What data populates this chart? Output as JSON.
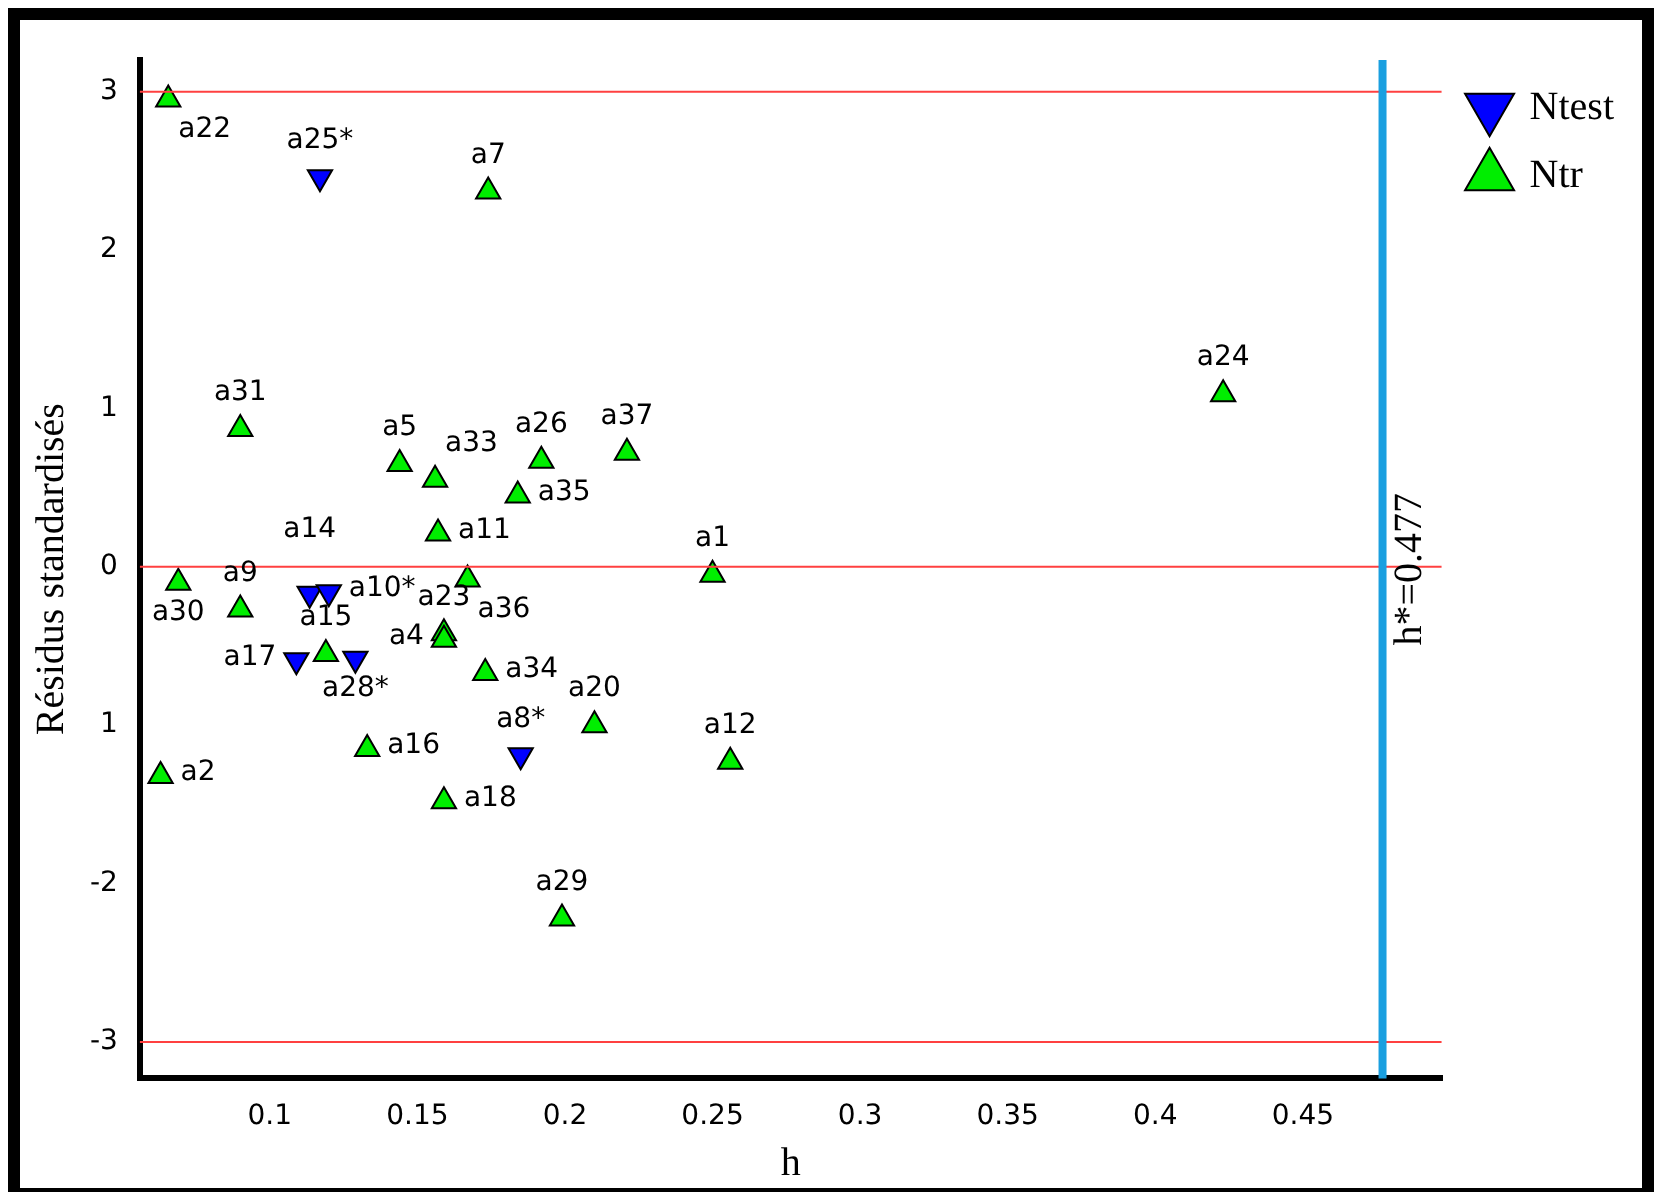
{
  "chart_data": {
    "type": "scatter",
    "xlabel": "h",
    "ylabel": "Résidus standardisés",
    "xlim": [
      0.056,
      0.497
    ],
    "xticks": [
      0.1,
      0.15,
      0.2,
      0.25,
      0.3,
      0.35,
      0.4,
      0.45
    ],
    "ylim": [
      -3.23,
      3.2
    ],
    "yticks": [
      -3,
      -2,
      {
        "value": -1,
        "label": "1"
      },
      0,
      1,
      2,
      3
    ],
    "grid": false,
    "legend": "top right",
    "series": [
      {
        "name": "Ntest",
        "color": "#0000ff",
        "marker": "triangle-down",
        "x": [
          0.117,
          0.1135,
          0.12,
          0.109,
          0.129,
          0.185
        ],
        "values": [
          2.46,
          -0.17,
          -0.16,
          -0.59,
          -0.58,
          -1.19
        ]
      },
      {
        "name": "Ntr",
        "color": "#00ee00",
        "marker": "triangle",
        "x": [
          0.0656,
          0.174,
          0.09,
          0.144,
          0.156,
          0.192,
          0.184,
          0.221,
          0.157,
          0.167,
          0.25,
          0.069,
          0.09,
          0.119,
          0.159,
          0.159,
          0.173,
          0.21,
          0.133,
          0.256,
          0.063,
          0.159,
          0.199,
          0.423
        ],
        "values": [
          2.95,
          2.37,
          0.87,
          0.65,
          0.55,
          0.67,
          0.45,
          0.72,
          0.21,
          -0.08,
          -0.05,
          -0.1,
          -0.27,
          -0.55,
          -0.42,
          -0.46,
          -0.67,
          -1.0,
          -1.15,
          -1.23,
          -1.32,
          -1.48,
          -2.22,
          1.09
        ]
      }
    ],
    "ref_lines": [
      {
        "axis": "y",
        "value": 3,
        "color": "#ff4040"
      },
      {
        "axis": "y",
        "value": 0,
        "color": "#ff4040"
      },
      {
        "axis": "y",
        "value": -3,
        "color": "#ff4040"
      },
      {
        "axis": "x",
        "value": 0.477,
        "label": "h*=0.477",
        "color": "#1a9fe0"
      }
    ],
    "annotations": [
      {
        "text": "a25*",
        "x": 0.117,
        "y": 2.46
      },
      {
        "text": "a14",
        "x": 0.1135,
        "y": -0.17
      },
      {
        "text": "a10*",
        "x": 0.12,
        "y": -0.16
      },
      {
        "text": "a17",
        "x": 0.109,
        "y": -0.59
      },
      {
        "text": "a28*",
        "x": 0.129,
        "y": -0.58
      },
      {
        "text": "a8*",
        "x": 0.185,
        "y": -1.19
      },
      {
        "text": "a22",
        "x": 0.0656,
        "y": 2.95
      },
      {
        "text": "a7",
        "x": 0.174,
        "y": 2.37
      },
      {
        "text": "a31",
        "x": 0.09,
        "y": 0.87
      },
      {
        "text": "a5",
        "x": 0.144,
        "y": 0.65
      },
      {
        "text": "a33",
        "x": 0.156,
        "y": 0.55
      },
      {
        "text": "a26",
        "x": 0.192,
        "y": 0.67
      },
      {
        "text": "a35",
        "x": 0.184,
        "y": 0.45
      },
      {
        "text": "a37",
        "x": 0.221,
        "y": 0.72
      },
      {
        "text": "a11",
        "x": 0.157,
        "y": 0.21
      },
      {
        "text": "a36",
        "x": 0.167,
        "y": -0.08
      },
      {
        "text": "a1",
        "x": 0.25,
        "y": -0.05
      },
      {
        "text": "a30",
        "x": 0.069,
        "y": -0.1
      },
      {
        "text": "a9",
        "x": 0.09,
        "y": -0.27
      },
      {
        "text": "a15",
        "x": 0.119,
        "y": -0.55
      },
      {
        "text": "a23",
        "x": 0.159,
        "y": -0.42
      },
      {
        "text": "a4",
        "x": 0.159,
        "y": -0.46
      },
      {
        "text": "a34",
        "x": 0.173,
        "y": -0.67
      },
      {
        "text": "a20",
        "x": 0.21,
        "y": -1.0
      },
      {
        "text": "a16",
        "x": 0.133,
        "y": -1.15
      },
      {
        "text": "a12",
        "x": 0.256,
        "y": -1.23
      },
      {
        "text": "a2",
        "x": 0.063,
        "y": -1.32
      },
      {
        "text": "a18",
        "x": 0.159,
        "y": -1.48
      },
      {
        "text": "a29",
        "x": 0.199,
        "y": -2.22
      },
      {
        "text": "a24",
        "x": 0.423,
        "y": 1.09
      }
    ]
  }
}
